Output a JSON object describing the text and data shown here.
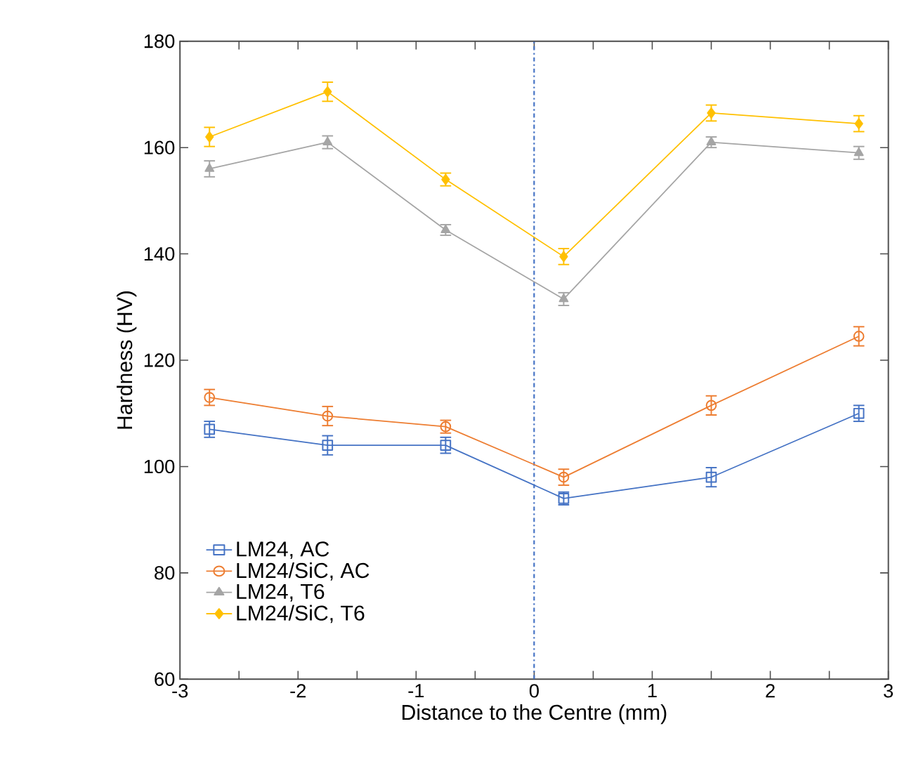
{
  "chart_data": {
    "type": "line",
    "xlabel": "Distance to the Centre (mm)",
    "ylabel": "Hardness (HV)",
    "x": [
      -2.75,
      -1.75,
      -0.75,
      0.25,
      1.5,
      2.75
    ],
    "series": [
      {
        "name": "LM24, AC",
        "color": "#4472c4",
        "marker": "square",
        "values": [
          107,
          104,
          104,
          94,
          98,
          110
        ],
        "errors": [
          1.5,
          1.8,
          1.5,
          1.2,
          1.8,
          1.5
        ]
      },
      {
        "name": "LM24/SiC, AC",
        "color": "#ed7d31",
        "marker": "circle",
        "values": [
          113,
          109.5,
          107.5,
          98,
          111.5,
          124.5
        ],
        "errors": [
          1.5,
          1.8,
          1.2,
          1.5,
          1.8,
          1.8
        ]
      },
      {
        "name": "LM24, T6",
        "color": "#a5a5a5",
        "marker": "triangle",
        "values": [
          156,
          161,
          144.5,
          131.5,
          161,
          159
        ],
        "errors": [
          1.5,
          1.2,
          1.0,
          1.2,
          1.0,
          1.2
        ]
      },
      {
        "name": "LM24/SiC, T6",
        "color": "#ffc000",
        "marker": "diamond",
        "values": [
          162,
          170.5,
          154,
          139.5,
          166.5,
          164.5
        ],
        "errors": [
          1.8,
          1.8,
          1.2,
          1.5,
          1.5,
          1.5
        ]
      }
    ],
    "xlim": [
      -3,
      3
    ],
    "xticks": [
      -3,
      {
        "value": -2.5,
        "label": null
      },
      -2,
      {
        "value": -1.5,
        "label": null
      },
      -1,
      {
        "value": -0.5,
        "label": null
      },
      0,
      {
        "value": 0.5,
        "label": null
      },
      1,
      {
        "value": 1.5,
        "label": null
      },
      2,
      {
        "value": 2.5,
        "label": null
      },
      3
    ],
    "ylim": [
      60,
      180
    ],
    "yticks": [
      60,
      80,
      100,
      120,
      140,
      160,
      180
    ],
    "ref_lines": [
      {
        "axis": "x",
        "value": 0,
        "color": "#4472c4",
        "line_style": "dashdot"
      }
    ],
    "grid": false,
    "legend": "bottom left"
  }
}
